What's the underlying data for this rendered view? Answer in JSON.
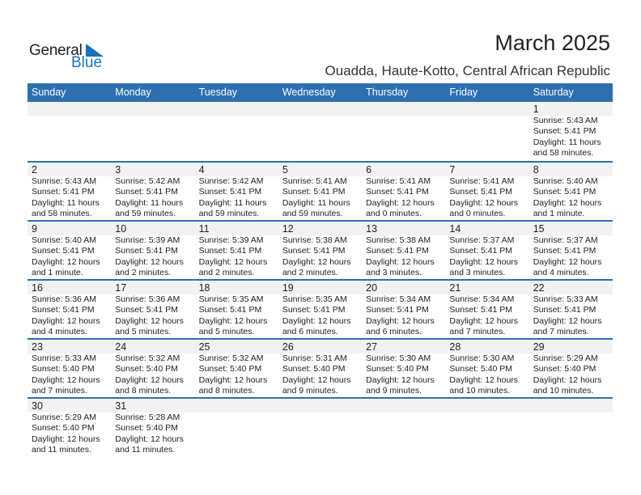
{
  "logo": {
    "line1": "General",
    "line2": "Blue"
  },
  "header": {
    "title": "March 2025",
    "subtitle": "Ouadda, Haute-Kotto, Central African Republic"
  },
  "colors": {
    "accent": "#2e6fb0",
    "strip": "#f2f2f2",
    "logo_blue": "#1a73c0"
  },
  "weekdays": [
    "Sunday",
    "Monday",
    "Tuesday",
    "Wednesday",
    "Thursday",
    "Friday",
    "Saturday"
  ],
  "weeks": [
    [
      null,
      null,
      null,
      null,
      null,
      null,
      {
        "day": "1",
        "sunrise": "Sunrise: 5:43 AM",
        "sunset": "Sunset: 5:41 PM",
        "daylight1": "Daylight: 11 hours",
        "daylight2": "and 58 minutes."
      }
    ],
    [
      {
        "day": "2",
        "sunrise": "Sunrise: 5:43 AM",
        "sunset": "Sunset: 5:41 PM",
        "daylight1": "Daylight: 11 hours",
        "daylight2": "and 58 minutes."
      },
      {
        "day": "3",
        "sunrise": "Sunrise: 5:42 AM",
        "sunset": "Sunset: 5:41 PM",
        "daylight1": "Daylight: 11 hours",
        "daylight2": "and 59 minutes."
      },
      {
        "day": "4",
        "sunrise": "Sunrise: 5:42 AM",
        "sunset": "Sunset: 5:41 PM",
        "daylight1": "Daylight: 11 hours",
        "daylight2": "and 59 minutes."
      },
      {
        "day": "5",
        "sunrise": "Sunrise: 5:41 AM",
        "sunset": "Sunset: 5:41 PM",
        "daylight1": "Daylight: 11 hours",
        "daylight2": "and 59 minutes."
      },
      {
        "day": "6",
        "sunrise": "Sunrise: 5:41 AM",
        "sunset": "Sunset: 5:41 PM",
        "daylight1": "Daylight: 12 hours",
        "daylight2": "and 0 minutes."
      },
      {
        "day": "7",
        "sunrise": "Sunrise: 5:41 AM",
        "sunset": "Sunset: 5:41 PM",
        "daylight1": "Daylight: 12 hours",
        "daylight2": "and 0 minutes."
      },
      {
        "day": "8",
        "sunrise": "Sunrise: 5:40 AM",
        "sunset": "Sunset: 5:41 PM",
        "daylight1": "Daylight: 12 hours",
        "daylight2": "and 1 minute."
      }
    ],
    [
      {
        "day": "9",
        "sunrise": "Sunrise: 5:40 AM",
        "sunset": "Sunset: 5:41 PM",
        "daylight1": "Daylight: 12 hours",
        "daylight2": "and 1 minute."
      },
      {
        "day": "10",
        "sunrise": "Sunrise: 5:39 AM",
        "sunset": "Sunset: 5:41 PM",
        "daylight1": "Daylight: 12 hours",
        "daylight2": "and 2 minutes."
      },
      {
        "day": "11",
        "sunrise": "Sunrise: 5:39 AM",
        "sunset": "Sunset: 5:41 PM",
        "daylight1": "Daylight: 12 hours",
        "daylight2": "and 2 minutes."
      },
      {
        "day": "12",
        "sunrise": "Sunrise: 5:38 AM",
        "sunset": "Sunset: 5:41 PM",
        "daylight1": "Daylight: 12 hours",
        "daylight2": "and 2 minutes."
      },
      {
        "day": "13",
        "sunrise": "Sunrise: 5:38 AM",
        "sunset": "Sunset: 5:41 PM",
        "daylight1": "Daylight: 12 hours",
        "daylight2": "and 3 minutes."
      },
      {
        "day": "14",
        "sunrise": "Sunrise: 5:37 AM",
        "sunset": "Sunset: 5:41 PM",
        "daylight1": "Daylight: 12 hours",
        "daylight2": "and 3 minutes."
      },
      {
        "day": "15",
        "sunrise": "Sunrise: 5:37 AM",
        "sunset": "Sunset: 5:41 PM",
        "daylight1": "Daylight: 12 hours",
        "daylight2": "and 4 minutes."
      }
    ],
    [
      {
        "day": "16",
        "sunrise": "Sunrise: 5:36 AM",
        "sunset": "Sunset: 5:41 PM",
        "daylight1": "Daylight: 12 hours",
        "daylight2": "and 4 minutes."
      },
      {
        "day": "17",
        "sunrise": "Sunrise: 5:36 AM",
        "sunset": "Sunset: 5:41 PM",
        "daylight1": "Daylight: 12 hours",
        "daylight2": "and 5 minutes."
      },
      {
        "day": "18",
        "sunrise": "Sunrise: 5:35 AM",
        "sunset": "Sunset: 5:41 PM",
        "daylight1": "Daylight: 12 hours",
        "daylight2": "and 5 minutes."
      },
      {
        "day": "19",
        "sunrise": "Sunrise: 5:35 AM",
        "sunset": "Sunset: 5:41 PM",
        "daylight1": "Daylight: 12 hours",
        "daylight2": "and 6 minutes."
      },
      {
        "day": "20",
        "sunrise": "Sunrise: 5:34 AM",
        "sunset": "Sunset: 5:41 PM",
        "daylight1": "Daylight: 12 hours",
        "daylight2": "and 6 minutes."
      },
      {
        "day": "21",
        "sunrise": "Sunrise: 5:34 AM",
        "sunset": "Sunset: 5:41 PM",
        "daylight1": "Daylight: 12 hours",
        "daylight2": "and 7 minutes."
      },
      {
        "day": "22",
        "sunrise": "Sunrise: 5:33 AM",
        "sunset": "Sunset: 5:41 PM",
        "daylight1": "Daylight: 12 hours",
        "daylight2": "and 7 minutes."
      }
    ],
    [
      {
        "day": "23",
        "sunrise": "Sunrise: 5:33 AM",
        "sunset": "Sunset: 5:40 PM",
        "daylight1": "Daylight: 12 hours",
        "daylight2": "and 7 minutes."
      },
      {
        "day": "24",
        "sunrise": "Sunrise: 5:32 AM",
        "sunset": "Sunset: 5:40 PM",
        "daylight1": "Daylight: 12 hours",
        "daylight2": "and 8 minutes."
      },
      {
        "day": "25",
        "sunrise": "Sunrise: 5:32 AM",
        "sunset": "Sunset: 5:40 PM",
        "daylight1": "Daylight: 12 hours",
        "daylight2": "and 8 minutes."
      },
      {
        "day": "26",
        "sunrise": "Sunrise: 5:31 AM",
        "sunset": "Sunset: 5:40 PM",
        "daylight1": "Daylight: 12 hours",
        "daylight2": "and 9 minutes."
      },
      {
        "day": "27",
        "sunrise": "Sunrise: 5:30 AM",
        "sunset": "Sunset: 5:40 PM",
        "daylight1": "Daylight: 12 hours",
        "daylight2": "and 9 minutes."
      },
      {
        "day": "28",
        "sunrise": "Sunrise: 5:30 AM",
        "sunset": "Sunset: 5:40 PM",
        "daylight1": "Daylight: 12 hours",
        "daylight2": "and 10 minutes."
      },
      {
        "day": "29",
        "sunrise": "Sunrise: 5:29 AM",
        "sunset": "Sunset: 5:40 PM",
        "daylight1": "Daylight: 12 hours",
        "daylight2": "and 10 minutes."
      }
    ],
    [
      {
        "day": "30",
        "sunrise": "Sunrise: 5:29 AM",
        "sunset": "Sunset: 5:40 PM",
        "daylight1": "Daylight: 12 hours",
        "daylight2": "and 11 minutes."
      },
      {
        "day": "31",
        "sunrise": "Sunrise: 5:28 AM",
        "sunset": "Sunset: 5:40 PM",
        "daylight1": "Daylight: 12 hours",
        "daylight2": "and 11 minutes."
      },
      null,
      null,
      null,
      null,
      null
    ]
  ]
}
